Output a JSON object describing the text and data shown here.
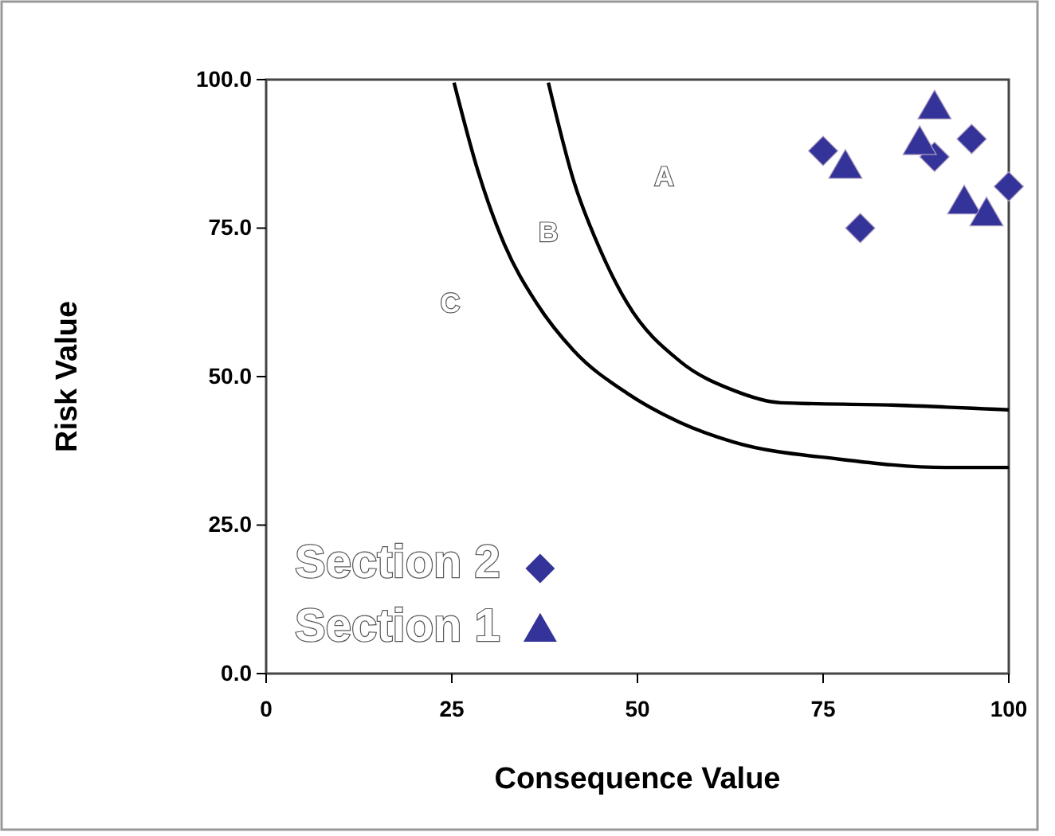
{
  "chart_data": {
    "type": "scatter",
    "xlabel": "Consequence Value",
    "ylabel": "Risk Value",
    "xlim": [
      0,
      100
    ],
    "xticks": [
      0,
      25,
      50,
      75,
      100
    ],
    "ylim": [
      0,
      100
    ],
    "yticks": [
      {
        "value": 0,
        "label": "0.0"
      },
      {
        "value": 25,
        "label": "25.0"
      },
      {
        "value": 50,
        "label": "50.0"
      },
      {
        "value": 75,
        "label": "75.0"
      },
      {
        "value": 100,
        "label": "100.0"
      }
    ],
    "grid": false,
    "legend": "bottom left",
    "annotations": [
      "A",
      "B",
      "C"
    ],
    "series": [
      {
        "name": "Section 2",
        "color": "#333399",
        "marker": "diamond",
        "x": [
          75,
          80,
          90,
          95,
          100
        ],
        "values": [
          88,
          75,
          87,
          90,
          82
        ]
      },
      {
        "name": "Section 1",
        "color": "#333399",
        "marker": "triangle",
        "x": [
          90,
          88,
          78,
          94,
          97
        ],
        "values": [
          95,
          89,
          85,
          79,
          77
        ]
      },
      {
        "type": "line",
        "color": "#000000",
        "marker": "none",
        "x": [
          38,
          41.4,
          45,
          48.6,
          55.7,
          62.9,
          69.3,
          84.3,
          100
        ],
        "values": [
          99.5,
          83,
          71.3,
          62.4,
          52.6,
          47.7,
          45.6,
          45.2,
          44.4
        ]
      },
      {
        "type": "line",
        "color": "#000000",
        "marker": "none",
        "x": [
          25.3,
          28.5,
          32.1,
          36.4,
          41.4,
          48.6,
          55.7,
          62.9,
          77.2,
          91.5,
          100
        ],
        "values": [
          99.5,
          84.7,
          72.2,
          62.4,
          54.4,
          47.2,
          42.3,
          39,
          36.1,
          34.7,
          34.7
        ]
      }
    ]
  }
}
